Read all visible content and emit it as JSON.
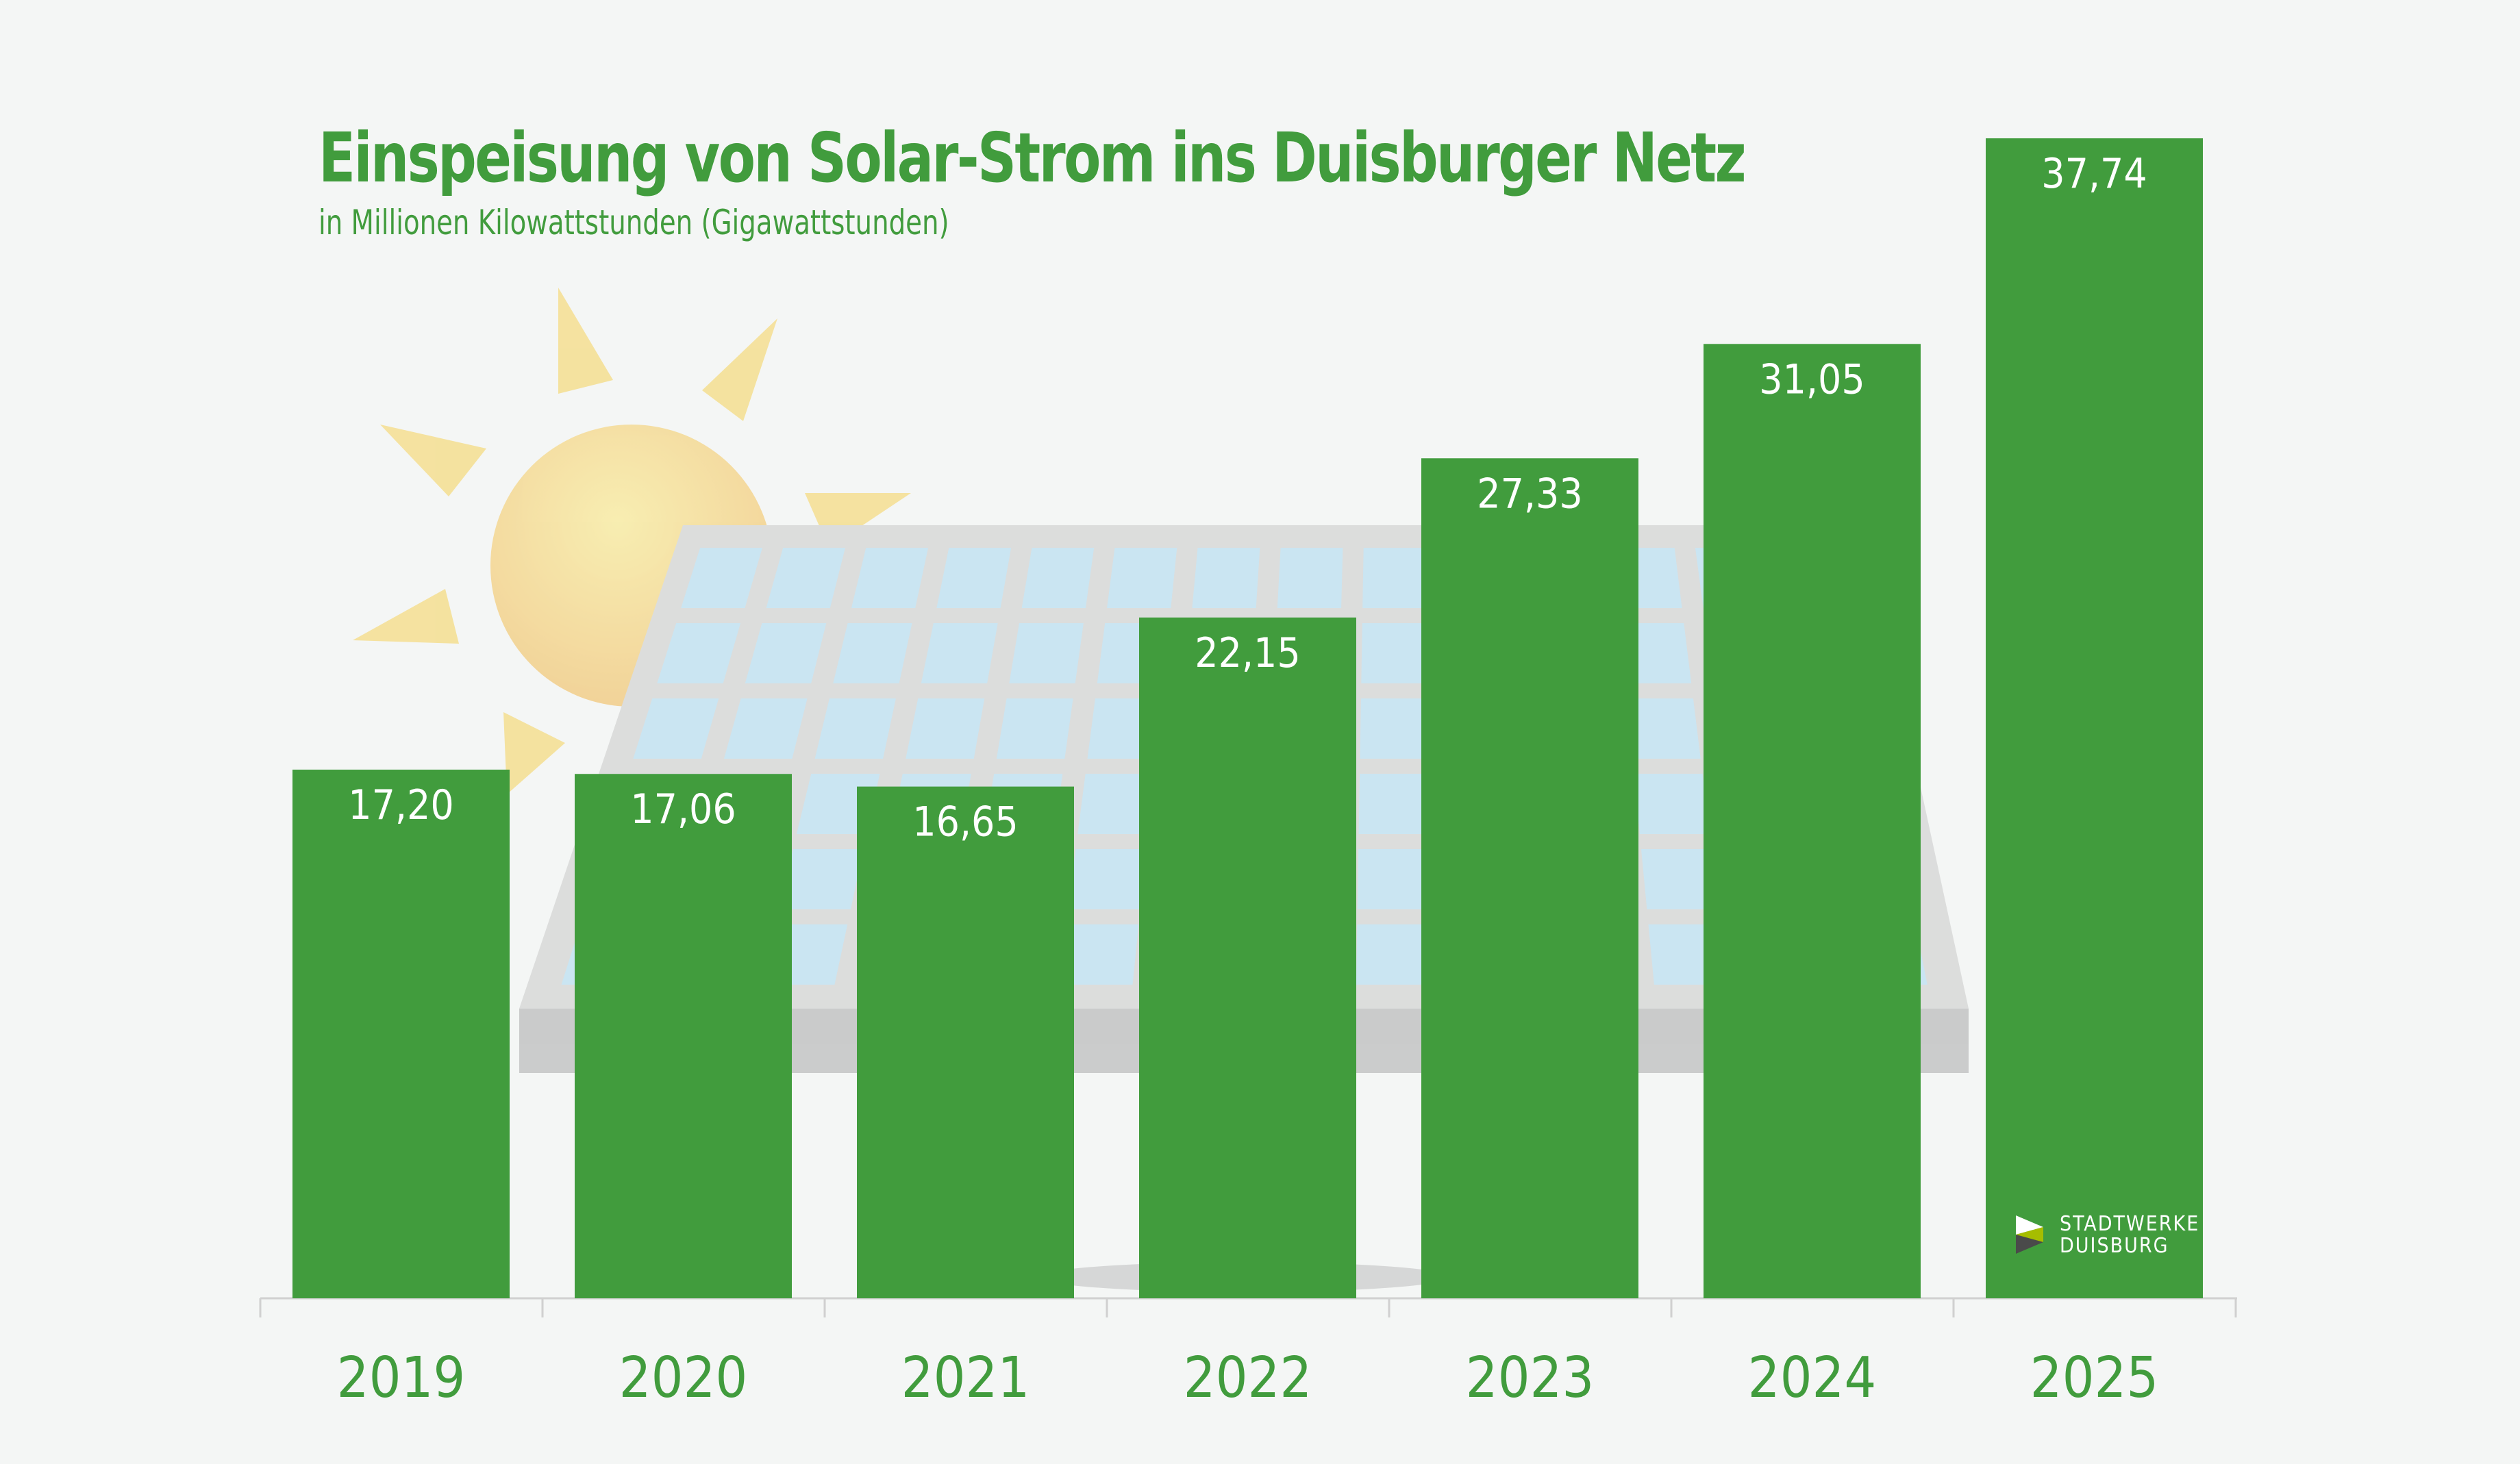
{
  "title": "Einspeisung von Solar-Strom ins Duisburger Netz",
  "subtitle": "in Millionen Kilowattstunden (Gigawattstunden)",
  "logo": {
    "line1": "STADTWERKE",
    "line2": "DUISBURG"
  },
  "colors": {
    "bar": "#419c3d",
    "background": "#f4f6f5",
    "text": "#419c3d"
  },
  "chart_data": {
    "type": "bar",
    "title": "Einspeisung von Solar-Strom ins Duisburger Netz",
    "subtitle": "in Millionen Kilowattstunden (Gigawattstunden)",
    "categories": [
      "2019",
      "2020",
      "2021",
      "2022",
      "2023",
      "2024",
      "2025"
    ],
    "values": [
      17.2,
      17.06,
      16.65,
      22.15,
      27.33,
      31.05,
      37.74
    ],
    "labels": [
      "17,20",
      "17,06",
      "16,65",
      "22,15",
      "27,33",
      "31,05",
      "37,74"
    ],
    "ylim": [
      0,
      42
    ],
    "grid": false,
    "data_labels": "inside-top"
  }
}
